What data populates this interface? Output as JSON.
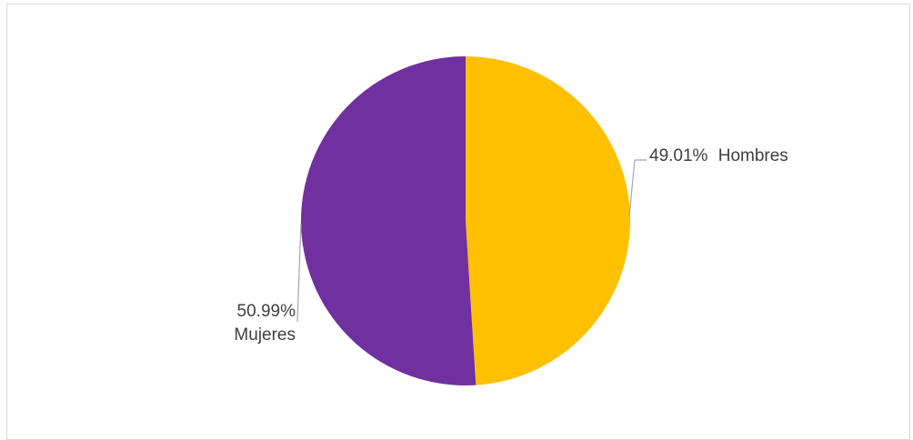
{
  "chart_data": {
    "type": "pie",
    "slices": [
      {
        "label": "Hombres",
        "value": 49.01,
        "display_value": "49.01%",
        "color": "#FFC000"
      },
      {
        "label": "Mujeres",
        "value": 50.99,
        "display_value": "50.99%",
        "color": "#7030A0"
      }
    ],
    "start_angle_deg": 0,
    "direction": "clockwise",
    "label_style": "percentage-and-category",
    "legend": "none",
    "title": ""
  }
}
